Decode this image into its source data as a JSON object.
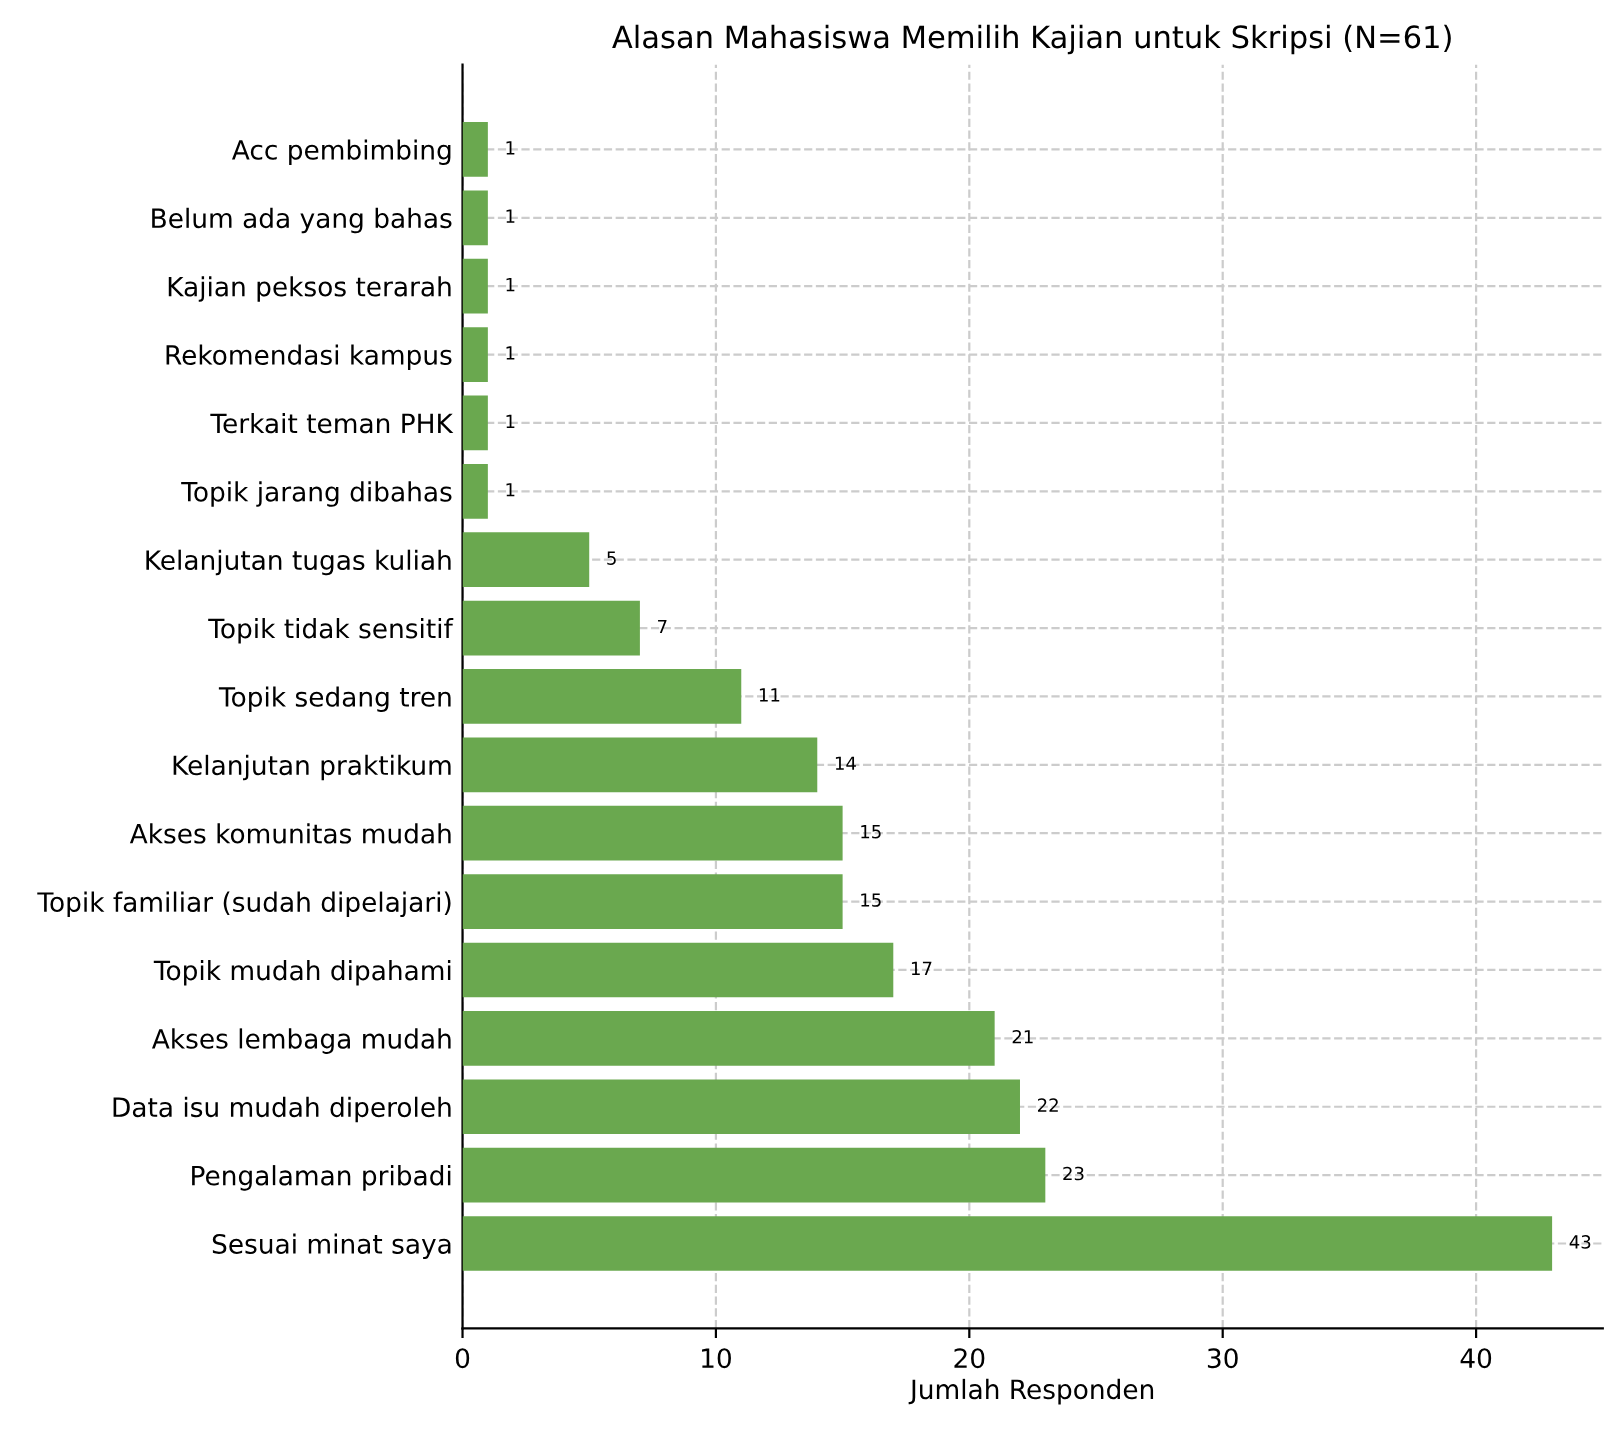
{
  "chart_data": {
    "type": "bar",
    "orientation": "horizontal",
    "title": "Alasan Mahasiswa Memilih Kajian untuk Skripsi (N=61)",
    "xlabel": "Jumlah Responden",
    "categories": [
      "Acc pembimbing",
      "Belum ada yang bahas",
      "Kajian peksos terarah",
      "Rekomendasi kampus",
      "Terkait teman PHK",
      "Topik jarang dibahas",
      "Kelanjutan tugas kuliah",
      "Topik tidak sensitif",
      "Topik sedang tren",
      "Kelanjutan praktikum",
      "Akses komunitas mudah",
      "Topik familiar (sudah dipelajari)",
      "Topik mudah dipahami",
      "Akses lembaga mudah",
      "Data isu mudah diperoleh",
      "Pengalaman pribadi",
      "Sesuai minat saya"
    ],
    "values": [
      1,
      1,
      1,
      1,
      1,
      1,
      5,
      7,
      11,
      14,
      15,
      15,
      17,
      21,
      22,
      23,
      43
    ],
    "color": "#6aa84f",
    "xlim": [
      0,
      45
    ],
    "xticks": [
      0,
      10,
      20,
      30,
      40
    ],
    "grid": true,
    "data_labels": true
  }
}
